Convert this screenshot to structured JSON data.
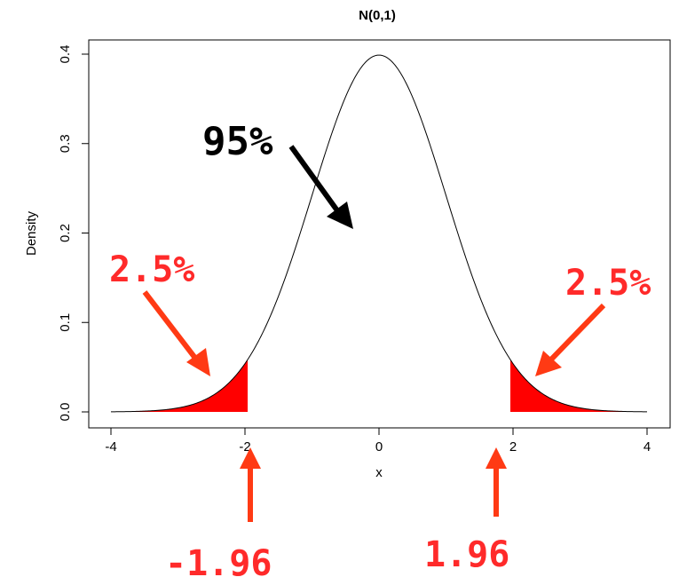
{
  "chart_data": {
    "type": "area",
    "title": "N(0,1)",
    "xlabel": "x",
    "ylabel": "Density",
    "xlim": [
      -4,
      4
    ],
    "ylim": [
      0,
      0.4
    ],
    "x_ticks": [
      "-4",
      "-2",
      "0",
      "2",
      "4"
    ],
    "y_ticks": [
      "0.0",
      "0.1",
      "0.2",
      "0.3",
      "0.4"
    ],
    "series": [
      {
        "curve": "standard normal density",
        "mean": 0,
        "sd": 1
      }
    ],
    "shaded_regions": [
      {
        "from": -4,
        "to": -1.96,
        "color": "#ff0000"
      },
      {
        "from": 1.96,
        "to": 4,
        "color": "#ff0000"
      }
    ],
    "annotations": {
      "center": {
        "text": "95%",
        "color": "#000000"
      },
      "left_tail": {
        "text": "2.5%",
        "color": "#ff2a2a"
      },
      "right_tail": {
        "text": "2.5%",
        "color": "#ff2a2a"
      },
      "left_cutoff": {
        "text": "-1.96",
        "color": "#ff2a2a"
      },
      "right_cutoff": {
        "text": "1.96",
        "color": "#ff2a2a"
      }
    },
    "grid": false,
    "legend": "none"
  }
}
